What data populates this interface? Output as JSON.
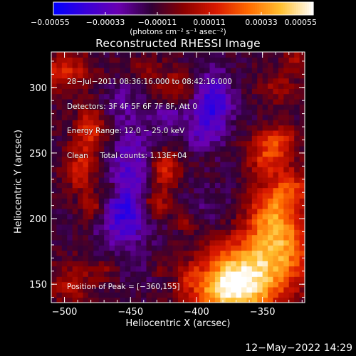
{
  "chart_data": {
    "type": "heatmap",
    "title": "Reconstructed RHESSI Image",
    "xlabel": "Heliocentric X (arcsec)",
    "ylabel": "Heliocentric Y (arcsec)",
    "xlim": [
      -510,
      -318
    ],
    "ylim": [
      136,
      327
    ],
    "x_ticks": [
      -500,
      -450,
      -400,
      -350
    ],
    "x_tick_labels": [
      "−500",
      "−450",
      "−400",
      "−350"
    ],
    "y_ticks": [
      150,
      200,
      250,
      300
    ],
    "y_tick_labels": [
      "150",
      "200",
      "250",
      "300"
    ],
    "colorbar": {
      "range": [
        -0.00055,
        0.00055
      ],
      "ticks": [
        -0.00055,
        -0.00033,
        -0.00011,
        0.00011,
        0.00033,
        0.00055
      ],
      "tick_labels": [
        "−0.00055",
        "−0.00033",
        "−0.00011",
        "0.00011",
        "0.00033",
        "0.00055"
      ],
      "units": "(photons cm⁻² s⁻¹ asec⁻²)",
      "colors": [
        "#0000ff",
        "#3a00d8",
        "#6a00b0",
        "#300038",
        "#8a0000",
        "#d81800",
        "#ff6a00",
        "#ffc030",
        "#ffffff"
      ]
    },
    "peak": [
      -360,
      155
    ],
    "peak_value": 0.00055,
    "regions": [
      {
        "x": -372,
        "y": 143,
        "sx": 22,
        "sy": 12,
        "value": 0.00055
      },
      {
        "x": -368,
        "y": 165,
        "sx": 22,
        "sy": 14,
        "value": 0.00042
      },
      {
        "x": -335,
        "y": 180,
        "sx": 18,
        "sy": 22,
        "value": 0.00038
      },
      {
        "x": -345,
        "y": 205,
        "sx": 12,
        "sy": 16,
        "value": 0.00026
      },
      {
        "x": -328,
        "y": 222,
        "sx": 10,
        "sy": 10,
        "value": 0.00025
      },
      {
        "x": -345,
        "y": 248,
        "sx": 12,
        "sy": 10,
        "value": 0.0003
      },
      {
        "x": -338,
        "y": 262,
        "sx": 10,
        "sy": 6,
        "value": 0.00022
      },
      {
        "x": -425,
        "y": 238,
        "sx": 8,
        "sy": 10,
        "value": 0.00033
      },
      {
        "x": -432,
        "y": 212,
        "sx": 8,
        "sy": 8,
        "value": 0.00028
      },
      {
        "x": -408,
        "y": 198,
        "sx": 5,
        "sy": 5,
        "value": 0.00015
      },
      {
        "x": -480,
        "y": 268,
        "sx": 8,
        "sy": 12,
        "value": 0.00028
      },
      {
        "x": -488,
        "y": 238,
        "sx": 8,
        "sy": 12,
        "value": 0.00025
      },
      {
        "x": -478,
        "y": 210,
        "sx": 6,
        "sy": 8,
        "value": 0.0002
      },
      {
        "x": -463,
        "y": 222,
        "sx": 5,
        "sy": 5,
        "value": 0.00015
      },
      {
        "x": -500,
        "y": 312,
        "sx": 14,
        "sy": 10,
        "value": 0.00025
      },
      {
        "x": -415,
        "y": 300,
        "sx": 12,
        "sy": 10,
        "value": 0.00018
      },
      {
        "x": -440,
        "y": 315,
        "sx": 8,
        "sy": 6,
        "value": 0.00012
      },
      {
        "x": -340,
        "y": 300,
        "sx": 10,
        "sy": 8,
        "value": 0.00014
      },
      {
        "x": -325,
        "y": 320,
        "sx": 8,
        "sy": 8,
        "value": 0.00015
      },
      {
        "x": -495,
        "y": 150,
        "sx": 12,
        "sy": 12,
        "value": 0.00016
      },
      {
        "x": -470,
        "y": 162,
        "sx": 8,
        "sy": 6,
        "value": 0.00012
      },
      {
        "x": -405,
        "y": 158,
        "sx": 6,
        "sy": 6,
        "value": 0.00014
      },
      {
        "x": -430,
        "y": 162,
        "sx": 5,
        "sy": 5,
        "value": 0.0001
      },
      {
        "x": -448,
        "y": 230,
        "sx": 14,
        "sy": 30,
        "value": -0.00035
      },
      {
        "x": -458,
        "y": 200,
        "sx": 12,
        "sy": 14,
        "value": -0.0003
      },
      {
        "x": -388,
        "y": 290,
        "sx": 10,
        "sy": 15,
        "value": -0.00045
      },
      {
        "x": -395,
        "y": 265,
        "sx": 12,
        "sy": 10,
        "value": -0.00025
      },
      {
        "x": -420,
        "y": 280,
        "sx": 10,
        "sy": 8,
        "value": -0.00028
      },
      {
        "x": -390,
        "y": 212,
        "sx": 12,
        "sy": 10,
        "value": -0.0002
      },
      {
        "x": -458,
        "y": 290,
        "sx": 10,
        "sy": 10,
        "value": -0.00022
      },
      {
        "x": -400,
        "y": 168,
        "sx": 10,
        "sy": 8,
        "value": -0.00016
      },
      {
        "x": -440,
        "y": 160,
        "sx": 12,
        "sy": 10,
        "value": -0.00018
      },
      {
        "x": -470,
        "y": 180,
        "sx": 8,
        "sy": 8,
        "value": -0.00014
      },
      {
        "x": -375,
        "y": 240,
        "sx": 8,
        "sy": 8,
        "value": -0.00015
      }
    ]
  },
  "annotations": {
    "line1": "28−Jul−2011 08:36:16.000 to 08:42:16.000",
    "line2": "Detectors: 3F 4F 5F 6F 7F 8F, Att 0",
    "line3": "Energy Range: 12.0 − 25.0 keV",
    "line4": "Clean     Total counts: 1.13E+04",
    "peak_label": "Position of Peak = [−360,155]"
  },
  "timestamp": "12−May−2022 14:29"
}
